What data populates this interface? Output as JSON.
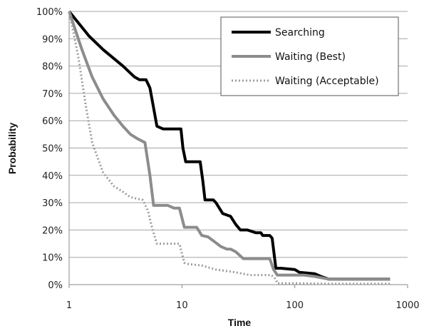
{
  "chart_data": {
    "type": "line",
    "title": "",
    "xlabel": "Time",
    "ylabel": "Probability",
    "xscale": "log",
    "xlim": [
      1,
      1000
    ],
    "ylim": [
      0,
      1
    ],
    "x_ticks": [
      "1",
      "10",
      "100",
      "1000"
    ],
    "y_ticks": [
      "0%",
      "10%",
      "20%",
      "30%",
      "40%",
      "50%",
      "60%",
      "70%",
      "80%",
      "90%",
      "100%"
    ],
    "grid": "horizontal",
    "legend_position": "top-right",
    "series": [
      {
        "name": "Searching",
        "color": "#000000",
        "style": "solid",
        "x": [
          1,
          1.5,
          2,
          3,
          3.8,
          4.2,
          4.8,
          5.2,
          5.7,
          6.0,
          6.8,
          8,
          9.4,
          9.8,
          10.2,
          10.8,
          13.8,
          14.5,
          15.3,
          16,
          19,
          20,
          23,
          27,
          30,
          33,
          38,
          45,
          50,
          52,
          60,
          63,
          68,
          75,
          100,
          110,
          150,
          170,
          200,
          700
        ],
        "y": [
          1,
          0.91,
          0.86,
          0.8,
          0.76,
          0.75,
          0.75,
          0.72,
          0.63,
          0.58,
          0.57,
          0.57,
          0.57,
          0.57,
          0.5,
          0.45,
          0.45,
          0.45,
          0.38,
          0.31,
          0.31,
          0.3,
          0.26,
          0.25,
          0.22,
          0.2,
          0.2,
          0.19,
          0.19,
          0.18,
          0.18,
          0.17,
          0.06,
          0.06,
          0.055,
          0.045,
          0.04,
          0.03,
          0.02,
          0.02
        ]
      },
      {
        "name": "Waiting (Best)",
        "color": "#8c8c8c",
        "style": "solid",
        "x": [
          1,
          1.3,
          1.6,
          2,
          2.5,
          3,
          3.5,
          4,
          4.7,
          5.2,
          5.6,
          6.2,
          7.5,
          8.5,
          9.5,
          10.5,
          11.5,
          13.5,
          15,
          17,
          19,
          22,
          25,
          27,
          30,
          35,
          45,
          60,
          65,
          70,
          80,
          120,
          150,
          200,
          400,
          700
        ],
        "y": [
          1,
          0.86,
          0.76,
          0.68,
          0.62,
          0.58,
          0.55,
          0.535,
          0.52,
          0.4,
          0.29,
          0.29,
          0.29,
          0.28,
          0.28,
          0.21,
          0.21,
          0.21,
          0.18,
          0.175,
          0.16,
          0.14,
          0.13,
          0.13,
          0.12,
          0.095,
          0.095,
          0.095,
          0.055,
          0.035,
          0.035,
          0.035,
          0.03,
          0.02,
          0.02,
          0.02
        ]
      },
      {
        "name": "Waiting (Acceptable)",
        "color": "#9c9c9c",
        "style": "dotted",
        "x": [
          1,
          1.2,
          1.4,
          1.6,
          2,
          2.5,
          3,
          3.5,
          4.5,
          5.0,
          5.5,
          6.0,
          7,
          9.5,
          10.5,
          11.5,
          15,
          20,
          30,
          40,
          55,
          62,
          68,
          70,
          100,
          200,
          400,
          700
        ],
        "y": [
          1,
          0.84,
          0.66,
          0.52,
          0.41,
          0.36,
          0.34,
          0.32,
          0.31,
          0.27,
          0.2,
          0.15,
          0.15,
          0.15,
          0.08,
          0.075,
          0.07,
          0.055,
          0.045,
          0.035,
          0.035,
          0.035,
          0.02,
          0.005,
          0.005,
          0.003,
          0.003,
          0.003
        ]
      }
    ]
  }
}
